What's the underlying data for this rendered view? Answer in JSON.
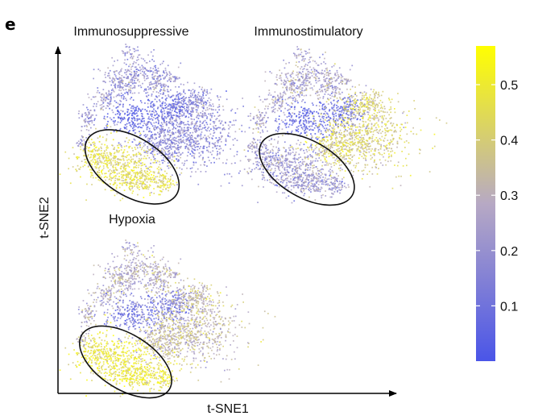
{
  "panel_label": "e",
  "chart_data": {
    "type": "scatter",
    "xlabel": "t-SNE1",
    "ylabel": "t-SNE2",
    "panels": [
      {
        "title": "Immunosuppressive",
        "highlight_region": "lower-left cluster (circled)",
        "highlight_level": 0.45,
        "rest_level": 0.2
      },
      {
        "title": "Immunostimulatory",
        "highlight_region": "lower-left cluster (circled)",
        "highlight_level": 0.22,
        "rest_level": 0.33
      },
      {
        "title": "Hypoxia",
        "highlight_region": "lower-left cluster (circled)",
        "highlight_level": 0.48,
        "rest_level": 0.3
      }
    ],
    "colorbar": {
      "ticks": [
        "0.1",
        "0.2",
        "0.3",
        "0.4",
        "0.5"
      ],
      "min": 0.0,
      "max": 0.57,
      "colors": [
        "#4a55e8",
        "#b7a9c4",
        "#ffff00"
      ]
    },
    "grid": false,
    "legend": "right"
  }
}
